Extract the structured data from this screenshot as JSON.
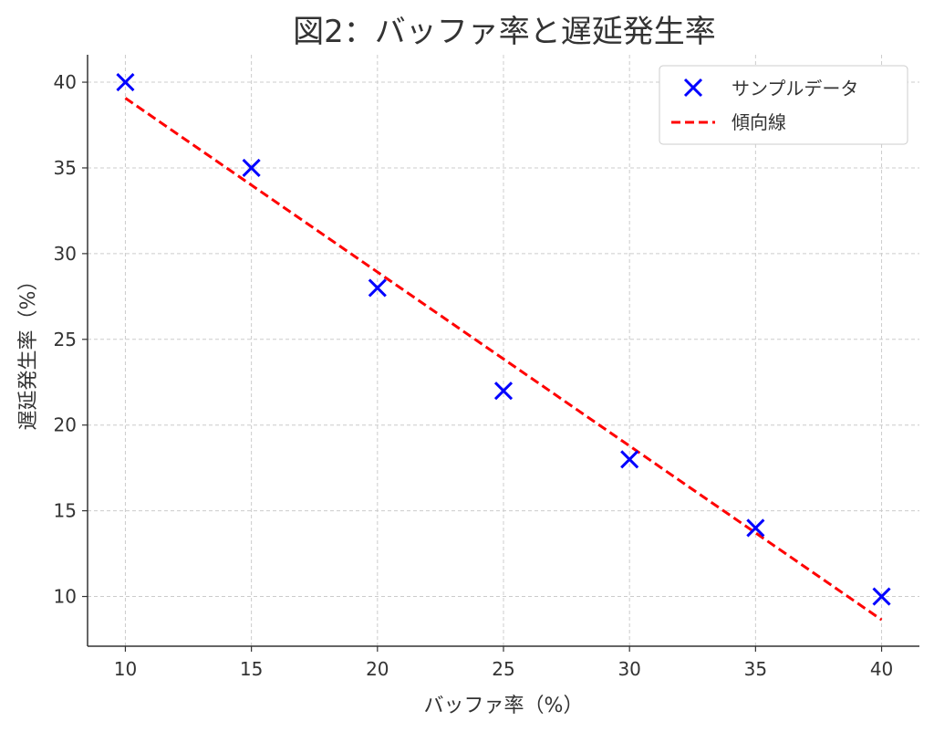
{
  "chart_data": {
    "type": "scatter",
    "title": "図2：バッファ率と遅延発生率",
    "xlabel": "バッファ率（%）",
    "ylabel": "遅延発生率（%）",
    "xlim": [
      8.5,
      41.5
    ],
    "ylim": [
      7.1,
      41.6
    ],
    "xticks": [
      10,
      15,
      20,
      25,
      30,
      35,
      40
    ],
    "yticks": [
      10,
      15,
      20,
      25,
      30,
      35,
      40
    ],
    "grid": true,
    "legend_position": "top-right",
    "series": [
      {
        "name": "サンプルデータ",
        "type": "scatter",
        "marker": "x",
        "color": "#0000ff",
        "x": [
          10,
          15,
          20,
          25,
          30,
          35,
          40
        ],
        "y": [
          40,
          35,
          28,
          22,
          18,
          14,
          10
        ]
      },
      {
        "name": "傾向線",
        "type": "line",
        "style": "dashed",
        "color": "#ff0000",
        "x": [
          10,
          40
        ],
        "y": [
          39.07,
          8.64
        ]
      }
    ]
  }
}
